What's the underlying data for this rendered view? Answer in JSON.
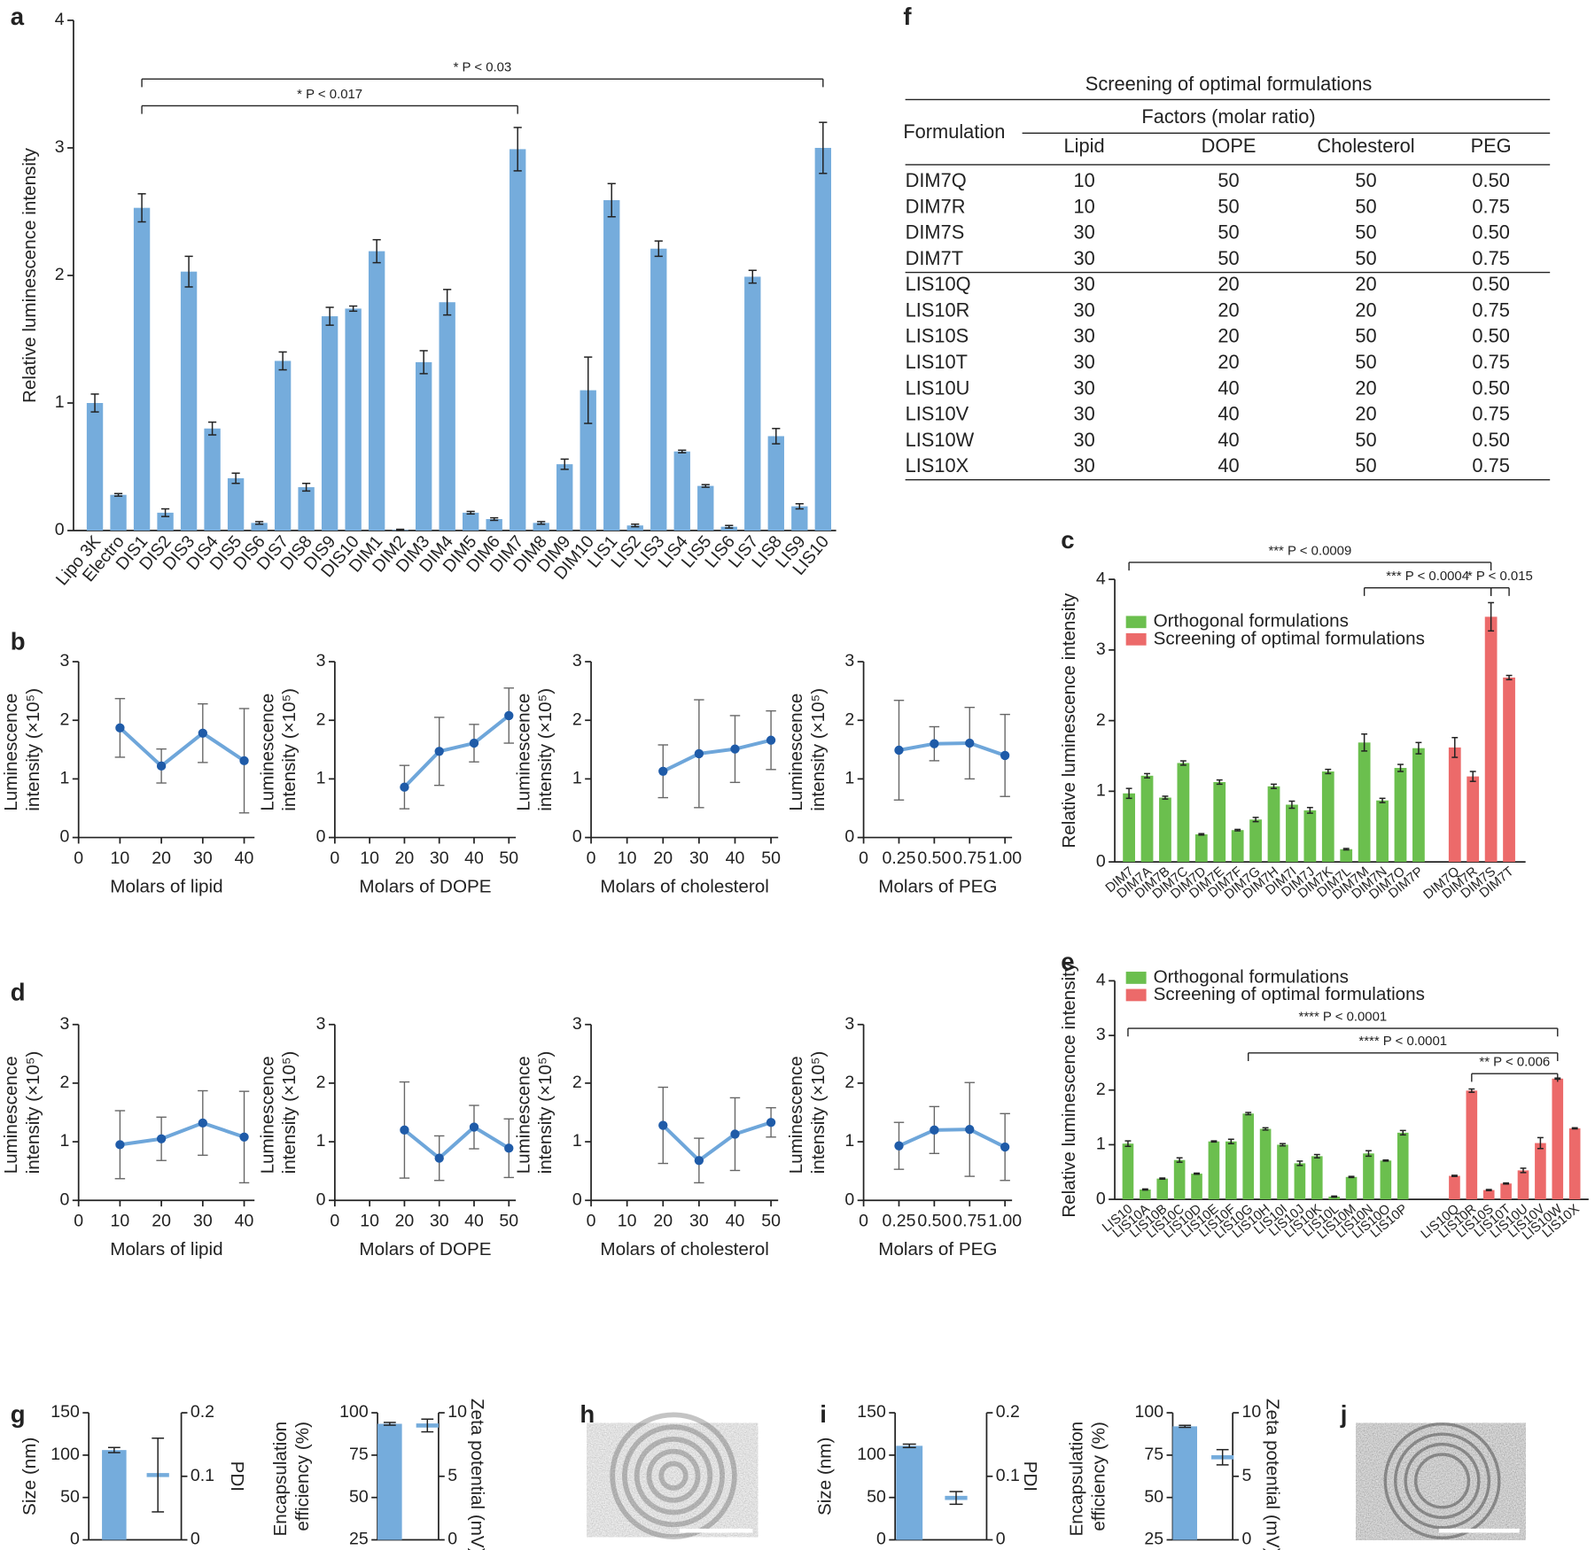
{
  "panel_labels": [
    "a",
    "b",
    "c",
    "d",
    "e",
    "f",
    "g",
    "h",
    "i",
    "j"
  ],
  "chart_data": [
    {
      "type": "bar",
      "ylabel": "Relative luminescence intensity",
      "categories": [
        "Lipo 3K",
        "Electro",
        "DIS1",
        "DIS2",
        "DIS3",
        "DIS4",
        "DIS5",
        "DIS6",
        "DIS7",
        "DIS8",
        "DIS9",
        "DIS10",
        "DIM1",
        "DIM2",
        "DIM3",
        "DIM4",
        "DIM5",
        "DIM6",
        "DIM7",
        "DIM8",
        "DIM9",
        "DIM10",
        "LIS1",
        "LIS2",
        "LIS3",
        "LIS4",
        "LIS5",
        "LIS6",
        "LIS7",
        "LIS8",
        "LIS9",
        "LIS10"
      ],
      "values": [
        1.0,
        0.28,
        2.53,
        0.14,
        2.03,
        0.8,
        0.41,
        0.06,
        1.33,
        0.34,
        1.68,
        1.74,
        2.19,
        0.005,
        1.32,
        1.79,
        0.14,
        0.09,
        2.99,
        0.06,
        0.52,
        1.1,
        2.59,
        0.04,
        2.21,
        0.62,
        0.35,
        0.03,
        1.99,
        0.74,
        0.19,
        3.0
      ],
      "errors": [
        0.07,
        0.01,
        0.11,
        0.03,
        0.12,
        0.05,
        0.04,
        0.01,
        0.07,
        0.03,
        0.07,
        0.02,
        0.09,
        0.005,
        0.09,
        0.1,
        0.01,
        0.01,
        0.17,
        0.01,
        0.04,
        0.26,
        0.13,
        0.01,
        0.06,
        0.01,
        0.01,
        0.01,
        0.05,
        0.06,
        0.02,
        0.2
      ],
      "color": "#75acdc",
      "ylim": [
        0,
        4
      ],
      "yticks": [
        0,
        1,
        2,
        3,
        4
      ],
      "annotations": [
        "* P < 0.017",
        "* P < 0.03"
      ]
    },
    {
      "type": "line",
      "ylabel": "Luminescence intensity (×10⁵)",
      "xlabel": "Molars of lipid",
      "x": [
        10,
        20,
        30,
        40
      ],
      "values": [
        1.87,
        1.22,
        1.78,
        1.31
      ],
      "errors": [
        0.5,
        0.29,
        0.5,
        0.89
      ],
      "color": "#6ea6da",
      "marker_color": "#1f5ba8",
      "xlim": [
        0,
        42.5
      ],
      "xticks": [
        0,
        10,
        20,
        30,
        40
      ],
      "ylim": [
        0,
        3
      ],
      "yticks": [
        0,
        1,
        2,
        3
      ]
    },
    {
      "type": "line",
      "ylabel": "Luminescence intensity (×10⁵)",
      "xlabel": "Molars of DOPE",
      "x": [
        20,
        30,
        40,
        50
      ],
      "values": [
        0.86,
        1.47,
        1.61,
        2.08
      ],
      "errors": [
        0.37,
        0.58,
        0.32,
        0.47
      ],
      "color": "#6ea6da",
      "marker_color": "#1f5ba8",
      "xlim": [
        0,
        52
      ],
      "xticks": [
        0,
        10,
        20,
        30,
        40,
        50
      ],
      "ylim": [
        0,
        3
      ],
      "yticks": [
        0,
        1,
        2,
        3
      ]
    },
    {
      "type": "line",
      "ylabel": "Luminescence intensity (×10⁵)",
      "xlabel": "Molars of cholesterol",
      "x": [
        20,
        30,
        40,
        50
      ],
      "values": [
        1.13,
        1.43,
        1.51,
        1.66
      ],
      "errors": [
        0.45,
        0.92,
        0.57,
        0.5
      ],
      "color": "#6ea6da",
      "marker_color": "#1f5ba8",
      "xlim": [
        0,
        52
      ],
      "xticks": [
        0,
        10,
        20,
        30,
        40,
        50
      ],
      "ylim": [
        0,
        3
      ],
      "yticks": [
        0,
        1,
        2,
        3
      ]
    },
    {
      "type": "line",
      "ylabel": "Luminescence intensity (×10⁵)",
      "xlabel": "Molars of PEG",
      "x": [
        0.25,
        0.5,
        0.75,
        1
      ],
      "values": [
        1.49,
        1.6,
        1.61,
        1.4
      ],
      "errors": [
        0.85,
        0.29,
        0.61,
        0.7
      ],
      "color": "#6ea6da",
      "marker_color": "#1f5ba8",
      "xlim": [
        0,
        1.05
      ],
      "xticks": [
        0,
        0.25,
        {
          "value": 0.5,
          "label": "0.50"
        },
        0.75,
        {
          "value": 1,
          "label": "1.00"
        }
      ],
      "ylim": [
        0,
        3
      ],
      "yticks": [
        0,
        1,
        2,
        3
      ]
    },
    {
      "type": "bar",
      "ylabel": "Relative luminescence intensity",
      "categories": [
        "DIM7",
        "DIM7A",
        "DIM7B",
        "DIM7C",
        "DIM7D",
        "DIM7E",
        "DIM7F",
        "DIM7G",
        "DIM7H",
        "DIM7I",
        "DIM7J",
        "DIM7K",
        "DIM7L",
        "DIM7M",
        "DIM7N",
        "DIM7O",
        "DIM7P",
        "DIM7Q",
        "DIM7R",
        "DIM7S",
        "DIM7T"
      ],
      "series": [
        {
          "name": "Orthogonal formulations",
          "color": "#6bbf4e",
          "values": [
            0.97,
            1.22,
            0.91,
            1.4,
            0.39,
            1.13,
            0.45,
            0.6,
            1.07,
            0.81,
            0.73,
            1.28,
            0.18,
            1.69,
            0.87,
            1.33,
            1.61,
            null,
            null,
            null,
            null
          ],
          "errors": [
            0.07,
            0.03,
            0.02,
            0.03,
            0.01,
            0.03,
            0.01,
            0.03,
            0.03,
            0.05,
            0.04,
            0.03,
            0.01,
            0.12,
            0.03,
            0.05,
            0.08,
            null,
            null,
            null,
            null
          ]
        },
        {
          "name": "Screening of optimal formulations",
          "color": "#ec6a6a",
          "values": [
            null,
            null,
            null,
            null,
            null,
            null,
            null,
            null,
            null,
            null,
            null,
            null,
            null,
            null,
            null,
            null,
            null,
            1.62,
            1.21,
            3.47,
            2.61
          ],
          "errors": [
            null,
            null,
            null,
            null,
            null,
            null,
            null,
            null,
            null,
            null,
            null,
            null,
            null,
            null,
            null,
            null,
            null,
            0.14,
            0.07,
            0.2,
            0.03
          ]
        }
      ],
      "ylim": [
        0,
        4
      ],
      "yticks": [
        0,
        1,
        2,
        3,
        4
      ],
      "annotations": [
        "*** P < 0.0009",
        "*** P < 0.0004",
        "* P < 0.015"
      ]
    },
    {
      "type": "line",
      "ylabel": "Luminescence intensity (×10⁵)",
      "xlabel": "Molars of lipid",
      "x": [
        10,
        20,
        30,
        40
      ],
      "values": [
        0.95,
        1.05,
        1.32,
        1.08
      ],
      "errors": [
        0.58,
        0.37,
        0.55,
        0.78
      ],
      "color": "#6ea6da",
      "marker_color": "#1f5ba8",
      "xlim": [
        0,
        42.5
      ],
      "xticks": [
        0,
        10,
        20,
        30,
        40
      ],
      "ylim": [
        0,
        3
      ],
      "yticks": [
        0,
        1,
        2,
        3
      ]
    },
    {
      "type": "line",
      "ylabel": "Luminescence intensity (×10⁵)",
      "xlabel": "Molars of DOPE",
      "x": [
        20,
        30,
        40,
        50
      ],
      "values": [
        1.2,
        0.72,
        1.25,
        0.89
      ],
      "errors": [
        0.82,
        0.38,
        0.37,
        0.5
      ],
      "color": "#6ea6da",
      "marker_color": "#1f5ba8",
      "xlim": [
        0,
        52
      ],
      "xticks": [
        0,
        10,
        20,
        30,
        40,
        50
      ],
      "ylim": [
        0,
        3
      ],
      "yticks": [
        0,
        1,
        2,
        3
      ]
    },
    {
      "type": "line",
      "ylabel": "Luminescence intensity (×10⁵)",
      "xlabel": "Molars of cholesterol",
      "x": [
        20,
        30,
        40,
        50
      ],
      "values": [
        1.28,
        0.68,
        1.13,
        1.33
      ],
      "errors": [
        0.65,
        0.38,
        0.62,
        0.25
      ],
      "color": "#6ea6da",
      "marker_color": "#1f5ba8",
      "xlim": [
        0,
        52
      ],
      "xticks": [
        0,
        10,
        20,
        30,
        40,
        50
      ],
      "ylim": [
        0,
        3
      ],
      "yticks": [
        0,
        1,
        2,
        3
      ]
    },
    {
      "type": "line",
      "ylabel": "Luminescence intensity (×10⁵)",
      "xlabel": "Molars of PEG",
      "x": [
        0.25,
        0.5,
        0.75,
        1
      ],
      "values": [
        0.93,
        1.2,
        1.21,
        0.91
      ],
      "errors": [
        0.4,
        0.4,
        0.8,
        0.57
      ],
      "color": "#6ea6da",
      "marker_color": "#1f5ba8",
      "xlim": [
        0,
        1.05
      ],
      "xticks": [
        0,
        0.25,
        {
          "value": 0.5,
          "label": "0.50"
        },
        0.75,
        {
          "value": 1,
          "label": "1.00"
        }
      ],
      "ylim": [
        0,
        3
      ],
      "yticks": [
        0,
        1,
        2,
        3
      ]
    },
    {
      "type": "bar",
      "ylabel": "Relative luminescence intensity",
      "categories": [
        "LIS10",
        "LIS10A",
        "LIS10B",
        "LIS10C",
        "LIS10D",
        "LIS10E",
        "LIS10F",
        "LIS10G",
        "LIS10H",
        "LIS10I",
        "LIS10J",
        "LIS10K",
        "LIS10L",
        "LIS10M",
        "LIS10N",
        "LIS10O",
        "LIS10P",
        "LIS10Q",
        "LIS10R",
        "LIS10S",
        "LIS10T",
        "LIS10U",
        "LIS10V",
        "LIS10W",
        "LIS10X"
      ],
      "series": [
        {
          "name": "Orthogonal formulations",
          "color": "#6bbf4e",
          "values": [
            1.02,
            0.18,
            0.38,
            0.72,
            0.47,
            1.06,
            1.06,
            1.57,
            1.29,
            1.0,
            0.66,
            0.79,
            0.05,
            0.41,
            0.84,
            0.71,
            1.22,
            null,
            null,
            null,
            null,
            null,
            null,
            null,
            null
          ],
          "errors": [
            0.05,
            0.01,
            0.01,
            0.04,
            0.01,
            0.01,
            0.04,
            0.02,
            0.02,
            0.02,
            0.04,
            0.03,
            0.01,
            0.01,
            0.05,
            0.01,
            0.04,
            null,
            null,
            null,
            null,
            null,
            null,
            null,
            null
          ]
        },
        {
          "name": "Screening of optimal formulations",
          "color": "#ec6a6a",
          "values": [
            null,
            null,
            null,
            null,
            null,
            null,
            null,
            null,
            null,
            null,
            null,
            null,
            null,
            null,
            null,
            null,
            null,
            0.43,
            1.99,
            0.17,
            0.29,
            0.53,
            1.03,
            2.21,
            1.3
          ],
          "errors": [
            null,
            null,
            null,
            null,
            null,
            null,
            null,
            null,
            null,
            null,
            null,
            null,
            null,
            null,
            null,
            null,
            null,
            0.01,
            0.03,
            0.01,
            0.01,
            0.04,
            0.1,
            0.01,
            0.01
          ]
        }
      ],
      "ylim": [
        0,
        4
      ],
      "yticks": [
        0,
        1,
        2,
        3,
        4
      ],
      "annotations": [
        "**** P < 0.0001",
        "**** P < 0.0001",
        "** P < 0.006"
      ]
    },
    {
      "type": "bar",
      "ylabel": "Size (nm)",
      "y2label": "PDI",
      "series": [
        {
          "color": "#75acdc",
          "values": [
            106
          ],
          "errors": [
            3
          ]
        },
        {
          "axis": "y2",
          "marker": "dash",
          "color": "#75acdc",
          "values": [
            0.102
          ],
          "errors": [
            0.058
          ]
        }
      ],
      "ylim": [
        0,
        150
      ],
      "yticks": [
        0,
        50,
        100,
        150
      ],
      "y2lim": [
        0,
        0.2
      ],
      "y2ticks": [
        0,
        0.1,
        0.2
      ]
    },
    {
      "type": "bar",
      "ylabel": "Encapsulation efficiency (%)",
      "y2label": "Zeta potential (mV)",
      "series": [
        {
          "color": "#75acdc",
          "values": [
            93.5
          ],
          "errors": [
            0.8
          ]
        },
        {
          "axis": "y2",
          "marker": "dash",
          "color": "#75acdc",
          "values": [
            9.0
          ],
          "errors": [
            0.5
          ]
        }
      ],
      "ylim": [
        25,
        100
      ],
      "yticks": [
        25,
        50,
        75,
        100
      ],
      "y2lim": [
        0,
        10
      ],
      "y2ticks": [
        0,
        5,
        10
      ]
    },
    {
      "type": "bar",
      "ylabel": "Size (nm)",
      "y2label": "PDI",
      "series": [
        {
          "color": "#75acdc",
          "values": [
            111
          ],
          "errors": [
            2
          ]
        },
        {
          "axis": "y2",
          "marker": "dash",
          "color": "#75acdc",
          "values": [
            0.066
          ],
          "errors": [
            0.01
          ]
        }
      ],
      "ylim": [
        0,
        150
      ],
      "yticks": [
        0,
        50,
        100,
        150
      ],
      "y2lim": [
        0,
        0.2
      ],
      "y2ticks": [
        0,
        0.1,
        0.2
      ]
    },
    {
      "type": "bar",
      "ylabel": "Encapsulation efficiency (%)",
      "y2label": "Zeta potential (mV)",
      "series": [
        {
          "color": "#75acdc",
          "values": [
            92
          ],
          "errors": [
            0.6
          ]
        },
        {
          "axis": "y2",
          "marker": "dash",
          "color": "#75acdc",
          "values": [
            6.5
          ],
          "errors": [
            0.6
          ]
        }
      ],
      "ylim": [
        25,
        100
      ],
      "yticks": [
        25,
        50,
        75,
        100
      ],
      "y2lim": [
        0,
        10
      ],
      "y2ticks": [
        0,
        5,
        10
      ]
    }
  ],
  "table": {
    "title": "Screening of optimal formulations",
    "header": {
      "formulation": "Formulation",
      "factors": "Factors (molar ratio)",
      "columns": [
        "Lipid",
        "DOPE",
        "Cholesterol",
        "PEG"
      ]
    },
    "rows": [
      [
        "DIM7Q",
        "10",
        "50",
        "50",
        "0.50"
      ],
      [
        "DIM7R",
        "10",
        "50",
        "50",
        "0.75"
      ],
      [
        "DIM7S",
        "30",
        "50",
        "50",
        "0.50"
      ],
      [
        "DIM7T",
        "30",
        "50",
        "50",
        "0.75"
      ],
      [
        "LIS10Q",
        "30",
        "20",
        "20",
        "0.50"
      ],
      [
        "LIS10R",
        "30",
        "20",
        "20",
        "0.75"
      ],
      [
        "LIS10S",
        "30",
        "20",
        "50",
        "0.50"
      ],
      [
        "LIS10T",
        "30",
        "20",
        "50",
        "0.75"
      ],
      [
        "LIS10U",
        "30",
        "40",
        "20",
        "0.50"
      ],
      [
        "LIS10V",
        "30",
        "40",
        "20",
        "0.75"
      ],
      [
        "LIS10W",
        "30",
        "40",
        "50",
        "0.50"
      ],
      [
        "LIS10X",
        "30",
        "40",
        "50",
        "0.75"
      ]
    ]
  }
}
